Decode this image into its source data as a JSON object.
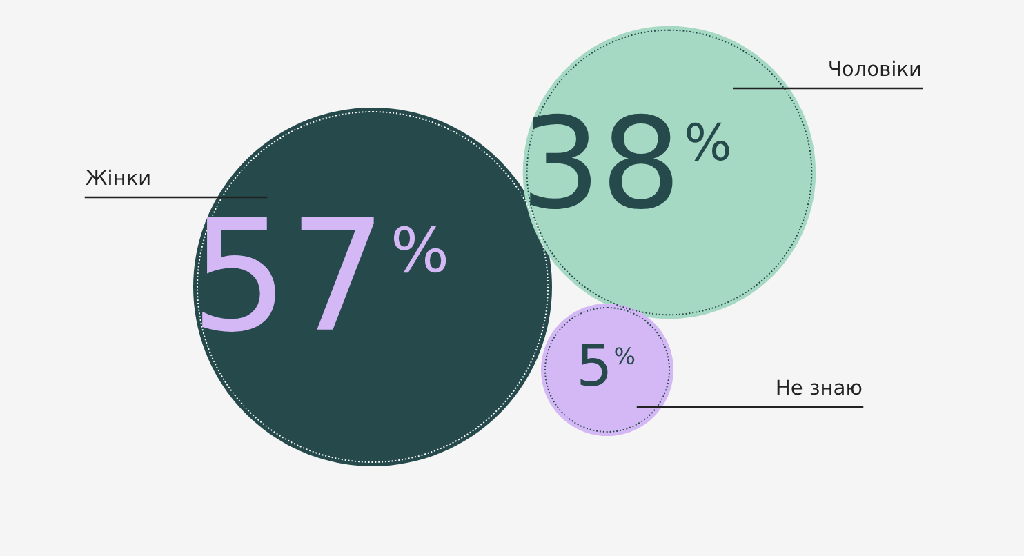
{
  "chart_data": {
    "type": "other",
    "categories": [
      "Жінки",
      "Чоловіки",
      "Не знаю"
    ],
    "values": [
      57,
      38,
      5
    ],
    "value_labels": [
      "57%",
      "38%",
      "5%"
    ],
    "colors": [
      "#264a4b",
      "#a6d9c4",
      "#d4b8f5"
    ]
  }
}
